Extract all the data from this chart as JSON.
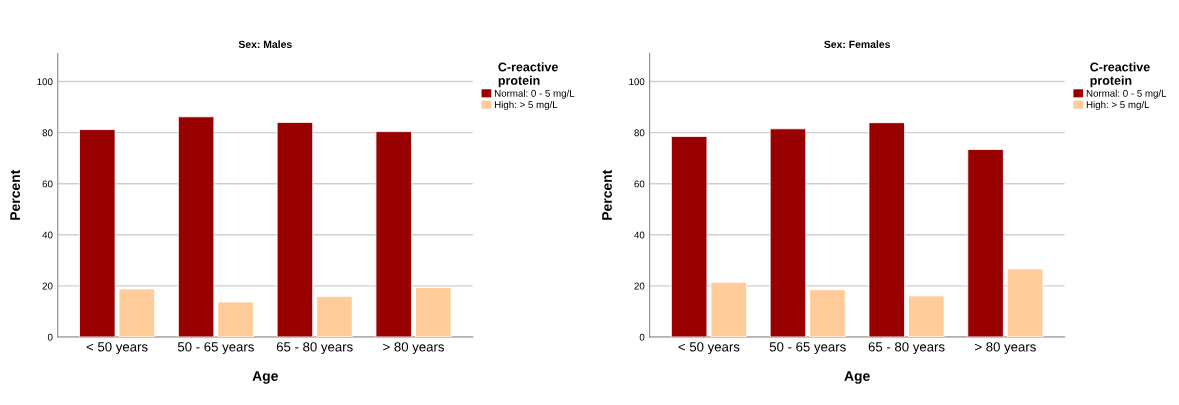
{
  "chart_data": [
    {
      "type": "bar",
      "title": "Sex: Males",
      "xlabel": "Age",
      "ylabel": "Percent",
      "legend_title": "C-reactive\nprotein",
      "categories": [
        "< 50 years",
        "50 - 65 years",
        "65 - 80 years",
        "> 80 years"
      ],
      "series": [
        {
          "name": "Normal: 0 - 5 mg/L",
          "color": "#990000",
          "values": [
            81.2,
            86.2,
            84.0,
            80.4
          ]
        },
        {
          "name": "High: > 5 mg/L",
          "color": "#ffcc99",
          "values": [
            18.8,
            13.7,
            15.9,
            19.4
          ]
        }
      ],
      "ylim": [
        0,
        111
      ],
      "yticks": [
        0,
        20,
        40,
        60,
        80,
        100
      ],
      "grid": "y",
      "legend": "right"
    },
    {
      "type": "bar",
      "title": "Sex: Females",
      "xlabel": "Age",
      "ylabel": "Percent",
      "legend_title": "C-reactive\nprotein",
      "categories": [
        "< 50 years",
        "50 - 65 years",
        "65 - 80 years",
        "> 80 years"
      ],
      "series": [
        {
          "name": "Normal: 0 - 5 mg/L",
          "color": "#990000",
          "values": [
            78.5,
            81.5,
            83.9,
            73.4
          ]
        },
        {
          "name": "High: > 5 mg/L",
          "color": "#ffcc99",
          "values": [
            21.4,
            18.5,
            16.1,
            26.6
          ]
        }
      ],
      "ylim": [
        0,
        111
      ],
      "yticks": [
        0,
        20,
        40,
        60,
        80,
        100
      ],
      "grid": "y",
      "legend": "right"
    }
  ]
}
